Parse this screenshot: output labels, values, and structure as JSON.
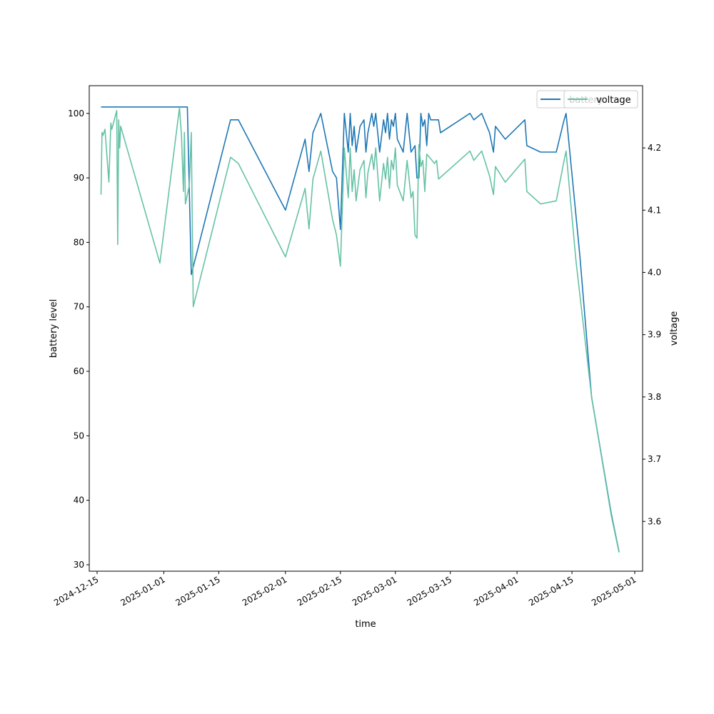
{
  "chart_data": {
    "type": "line",
    "xlabel": "time",
    "ylabel_left": "battery level",
    "ylabel_right": "voltage",
    "xlim": [
      "2024-12-13",
      "2025-05-03"
    ],
    "ylim_left": [
      29,
      104.3
    ],
    "ylim_right": [
      3.52,
      4.3
    ],
    "x_ticks": [
      "2024-12-15",
      "2025-01-01",
      "2025-01-15",
      "2025-02-01",
      "2025-02-15",
      "2025-03-01",
      "2025-03-15",
      "2025-04-01",
      "2025-04-15",
      "2025-05-01"
    ],
    "y_ticks_left": [
      30,
      40,
      50,
      60,
      70,
      80,
      90,
      100
    ],
    "y_ticks_right": [
      "3.6",
      "3.7",
      "3.8",
      "3.9",
      "4.0",
      "4.1",
      "4.2"
    ],
    "legend": {
      "location": "top-right",
      "entries": [
        "battery",
        "voltage"
      ]
    },
    "series": [
      {
        "name": "battery",
        "axis": "left",
        "color": "#1f77b4",
        "points": [
          [
            "2024-12-16",
            101
          ],
          [
            "2025-01-07",
            101
          ],
          [
            "2025-01-08",
            75
          ],
          [
            "2025-01-18",
            99
          ],
          [
            "2025-01-20",
            99
          ],
          [
            "2025-02-01",
            85
          ],
          [
            "2025-02-06",
            96
          ],
          [
            "2025-02-07",
            91
          ],
          [
            "2025-02-08",
            97
          ],
          [
            "2025-02-10",
            100
          ],
          [
            "2025-02-13",
            91
          ],
          [
            "2025-02-14",
            90
          ],
          [
            "2025-02-15",
            82
          ],
          [
            "2025-02-16",
            100
          ],
          [
            "2025-02-17",
            94
          ],
          [
            "2025-02-17T12",
            100
          ],
          [
            "2025-02-18",
            95
          ],
          [
            "2025-02-18T12",
            98
          ],
          [
            "2025-02-19",
            94
          ],
          [
            "2025-02-20",
            98
          ],
          [
            "2025-02-21",
            99
          ],
          [
            "2025-02-21T12",
            94
          ],
          [
            "2025-02-22",
            97
          ],
          [
            "2025-02-23",
            100
          ],
          [
            "2025-02-23T12",
            98
          ],
          [
            "2025-02-24",
            100
          ],
          [
            "2025-02-25",
            94
          ],
          [
            "2025-02-26",
            99
          ],
          [
            "2025-02-26T12",
            97
          ],
          [
            "2025-02-27",
            100
          ],
          [
            "2025-02-27T12",
            96
          ],
          [
            "2025-02-28",
            99
          ],
          [
            "2025-02-28T12",
            98
          ],
          [
            "2025-03-01",
            100
          ],
          [
            "2025-03-01T12",
            96
          ],
          [
            "2025-03-03",
            94
          ],
          [
            "2025-03-04",
            100
          ],
          [
            "2025-03-05",
            94
          ],
          [
            "2025-03-06",
            95
          ],
          [
            "2025-03-06T12",
            90
          ],
          [
            "2025-03-07",
            90
          ],
          [
            "2025-03-07T12",
            100
          ],
          [
            "2025-03-08",
            98
          ],
          [
            "2025-03-08T12",
            99
          ],
          [
            "2025-03-09",
            95
          ],
          [
            "2025-03-09T12",
            100
          ],
          [
            "2025-03-10",
            99
          ],
          [
            "2025-03-12",
            99
          ],
          [
            "2025-03-12T12",
            97
          ],
          [
            "2025-03-20",
            100
          ],
          [
            "2025-03-21",
            99
          ],
          [
            "2025-03-23",
            100
          ],
          [
            "2025-03-25",
            97
          ],
          [
            "2025-03-26",
            94
          ],
          [
            "2025-03-26T12",
            98
          ],
          [
            "2025-03-29",
            96
          ],
          [
            "2025-04-03",
            99
          ],
          [
            "2025-04-03T12",
            95
          ],
          [
            "2025-04-07",
            94
          ],
          [
            "2025-04-11",
            94
          ],
          [
            "2025-04-13",
            99
          ],
          [
            "2025-04-13T12",
            100
          ],
          [
            "2025-04-17",
            78
          ],
          [
            "2025-04-20",
            56
          ],
          [
            "2025-04-25",
            38
          ],
          [
            "2025-04-27",
            32
          ]
        ]
      },
      {
        "name": "voltage",
        "axis": "right",
        "color": "#66c2a5",
        "points": [
          [
            "2024-12-16",
            4.125
          ],
          [
            "2024-12-16T06",
            4.225
          ],
          [
            "2024-12-16T12",
            4.22
          ],
          [
            "2024-12-17",
            4.23
          ],
          [
            "2024-12-18",
            4.145
          ],
          [
            "2024-12-18T12",
            4.24
          ],
          [
            "2024-12-18T18",
            4.23
          ],
          [
            "2024-12-20",
            4.26
          ],
          [
            "2024-12-20T06",
            4.045
          ],
          [
            "2024-12-20T12",
            4.245
          ],
          [
            "2024-12-20T18",
            4.2
          ],
          [
            "2024-12-21",
            4.235
          ],
          [
            "2024-12-31",
            4.015
          ],
          [
            "2025-01-05",
            4.265
          ],
          [
            "2025-01-05T12",
            4.22
          ],
          [
            "2025-01-06",
            4.13
          ],
          [
            "2025-01-06T06",
            4.225
          ],
          [
            "2025-01-06T12",
            4.11
          ],
          [
            "2025-01-07",
            4.125
          ],
          [
            "2025-01-07T12",
            4.14
          ],
          [
            "2025-01-08",
            4.225
          ],
          [
            "2025-01-08T12",
            3.945
          ],
          [
            "2025-01-18",
            4.185
          ],
          [
            "2025-01-20",
            4.175
          ],
          [
            "2025-02-01",
            4.025
          ],
          [
            "2025-02-06",
            4.135
          ],
          [
            "2025-02-07",
            4.07
          ],
          [
            "2025-02-08",
            4.15
          ],
          [
            "2025-02-10",
            4.195
          ],
          [
            "2025-02-13",
            4.085
          ],
          [
            "2025-02-14",
            4.06
          ],
          [
            "2025-02-15",
            4.01
          ],
          [
            "2025-02-16",
            4.2
          ],
          [
            "2025-02-17",
            4.12
          ],
          [
            "2025-02-17T12",
            4.2
          ],
          [
            "2025-02-18",
            4.13
          ],
          [
            "2025-02-18T12",
            4.165
          ],
          [
            "2025-02-19",
            4.115
          ],
          [
            "2025-02-20",
            4.165
          ],
          [
            "2025-02-21",
            4.18
          ],
          [
            "2025-02-21T12",
            4.12
          ],
          [
            "2025-02-22",
            4.16
          ],
          [
            "2025-02-23",
            4.19
          ],
          [
            "2025-02-23T12",
            4.165
          ],
          [
            "2025-02-24",
            4.2
          ],
          [
            "2025-02-25",
            4.115
          ],
          [
            "2025-02-26",
            4.175
          ],
          [
            "2025-02-26T12",
            4.15
          ],
          [
            "2025-02-27",
            4.185
          ],
          [
            "2025-02-27T12",
            4.135
          ],
          [
            "2025-02-28",
            4.18
          ],
          [
            "2025-02-28T12",
            4.165
          ],
          [
            "2025-03-01",
            4.2
          ],
          [
            "2025-03-01T12",
            4.14
          ],
          [
            "2025-03-03",
            4.115
          ],
          [
            "2025-03-04",
            4.18
          ],
          [
            "2025-03-05",
            4.12
          ],
          [
            "2025-03-05T12",
            4.13
          ],
          [
            "2025-03-06",
            4.06
          ],
          [
            "2025-03-06T12",
            4.055
          ],
          [
            "2025-03-07",
            4.205
          ],
          [
            "2025-03-07T12",
            4.17
          ],
          [
            "2025-03-08",
            4.18
          ],
          [
            "2025-03-08T12",
            4.13
          ],
          [
            "2025-03-09",
            4.19
          ],
          [
            "2025-03-11",
            4.175
          ],
          [
            "2025-03-11T12",
            4.18
          ],
          [
            "2025-03-12",
            4.15
          ],
          [
            "2025-03-20",
            4.195
          ],
          [
            "2025-03-21",
            4.18
          ],
          [
            "2025-03-23",
            4.195
          ],
          [
            "2025-03-25",
            4.155
          ],
          [
            "2025-03-26",
            4.125
          ],
          [
            "2025-03-26T12",
            4.17
          ],
          [
            "2025-03-29",
            4.145
          ],
          [
            "2025-04-03",
            4.182
          ],
          [
            "2025-04-03T12",
            4.13
          ],
          [
            "2025-04-07",
            4.11
          ],
          [
            "2025-04-11",
            4.115
          ],
          [
            "2025-04-13",
            4.18
          ],
          [
            "2025-04-13T12",
            4.195
          ],
          [
            "2025-04-16",
            4.02
          ],
          [
            "2025-04-20",
            3.8
          ],
          [
            "2025-04-25",
            3.61
          ],
          [
            "2025-04-27",
            3.55
          ]
        ]
      }
    ]
  }
}
